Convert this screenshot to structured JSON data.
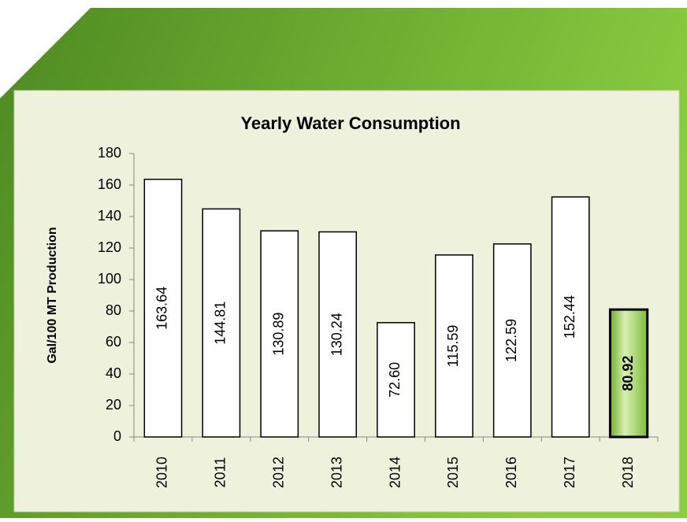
{
  "chart_data": {
    "type": "bar",
    "title": "Yearly Water Consumption",
    "y_label": "Gal/100 MT Production",
    "categories": [
      "2010",
      "2011",
      "2012",
      "2013",
      "2014",
      "2015",
      "2016",
      "2017",
      "2018"
    ],
    "values": [
      163.64,
      144.81,
      130.89,
      130.24,
      72.6,
      115.59,
      122.59,
      152.44,
      80.92
    ],
    "value_labels": [
      "163.64",
      "144.81",
      "130.89",
      "130.24",
      "72.60",
      "115.59",
      "122.59",
      "152.44",
      "80.92"
    ],
    "colors": [
      "#ffffff",
      "#ffffff",
      "#ffffff",
      "#ffffff",
      "#ffffff",
      "#ffffff",
      "#ffffff",
      "#ffffff",
      "#9ad05a"
    ],
    "ylim": [
      0,
      180
    ],
    "yticks": [
      0,
      20,
      40,
      60,
      80,
      100,
      120,
      140,
      160,
      180
    ],
    "grid": false
  }
}
